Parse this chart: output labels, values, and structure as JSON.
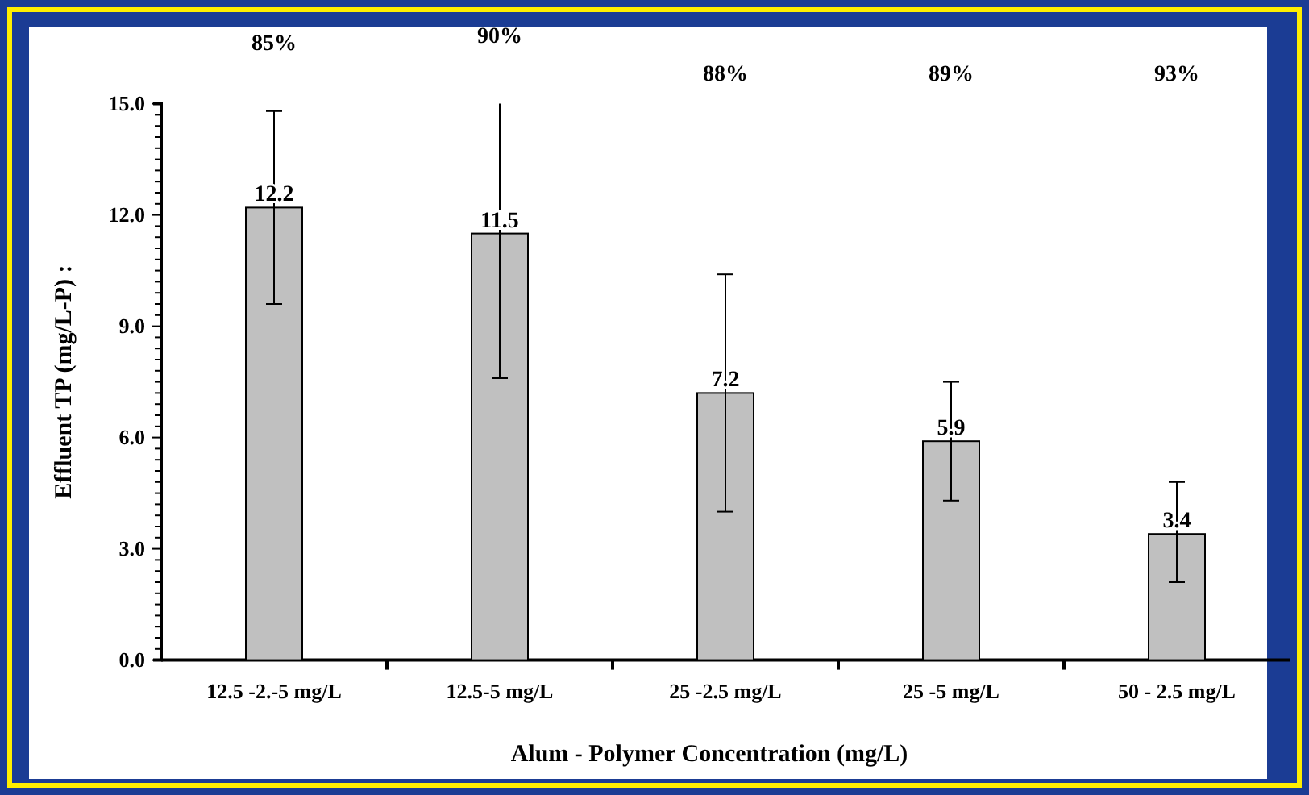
{
  "chart_data": {
    "type": "bar",
    "categories": [
      "12.5 -2.-5 mg/L",
      "12.5-5 mg/L",
      "25 -2.5 mg/L",
      "25 -5 mg/L",
      "50 - 2.5 mg/L"
    ],
    "values": [
      12.2,
      11.5,
      7.2,
      5.9,
      3.4
    ],
    "color": "#c0c0c0",
    "errors": [
      [
        9.6,
        14.8
      ],
      [
        7.6,
        15.0
      ],
      [
        4.0,
        10.4
      ],
      [
        4.3,
        7.5
      ],
      [
        2.1,
        4.8
      ]
    ],
    "data_labels": true,
    "xlabel": "Alum - Polymer Concentration (mg/L)",
    "ylabel": "Effluent TP  (mg/L-P)  :",
    "annotations": [
      "85%",
      "90%",
      "88%",
      "89%",
      "93%"
    ],
    "ylim": [
      0,
      15
    ],
    "yticks": [
      {
        "value": 0,
        "label": "0.0"
      },
      {
        "value": 0.3,
        "label": null
      },
      {
        "value": 0.6,
        "label": null
      },
      {
        "value": 0.9,
        "label": null
      },
      {
        "value": 1.2,
        "label": null
      },
      {
        "value": 1.5,
        "label": null
      },
      {
        "value": 1.8,
        "label": null
      },
      {
        "value": 2.1,
        "label": null
      },
      {
        "value": 2.4,
        "label": null
      },
      {
        "value": 2.7,
        "label": null
      },
      {
        "value": 3,
        "label": "3.0"
      },
      {
        "value": 3.3,
        "label": null
      },
      {
        "value": 3.6,
        "label": null
      },
      {
        "value": 3.9,
        "label": null
      },
      {
        "value": 4.2,
        "label": null
      },
      {
        "value": 4.5,
        "label": null
      },
      {
        "value": 4.8,
        "label": null
      },
      {
        "value": 5.1,
        "label": null
      },
      {
        "value": 5.4,
        "label": null
      },
      {
        "value": 5.7,
        "label": null
      },
      {
        "value": 6,
        "label": "6.0"
      },
      {
        "value": 6.3,
        "label": null
      },
      {
        "value": 6.6,
        "label": null
      },
      {
        "value": 6.9,
        "label": null
      },
      {
        "value": 7.2,
        "label": null
      },
      {
        "value": 7.5,
        "label": null
      },
      {
        "value": 7.8,
        "label": null
      },
      {
        "value": 8.1,
        "label": null
      },
      {
        "value": 8.4,
        "label": null
      },
      {
        "value": 8.7,
        "label": null
      },
      {
        "value": 9,
        "label": "9.0"
      },
      {
        "value": 9.3,
        "label": null
      },
      {
        "value": 9.6,
        "label": null
      },
      {
        "value": 9.9,
        "label": null
      },
      {
        "value": 10.2,
        "label": null
      },
      {
        "value": 10.5,
        "label": null
      },
      {
        "value": 10.8,
        "label": null
      },
      {
        "value": 11.1,
        "label": null
      },
      {
        "value": 11.4,
        "label": null
      },
      {
        "value": 11.7,
        "label": null
      },
      {
        "value": 12,
        "label": "12.0"
      },
      {
        "value": 12.3,
        "label": null
      },
      {
        "value": 12.6,
        "label": null
      },
      {
        "value": 12.9,
        "label": null
      },
      {
        "value": 13.2,
        "label": null
      },
      {
        "value": 13.5,
        "label": null
      },
      {
        "value": 13.8,
        "label": null
      },
      {
        "value": 14.1,
        "label": null
      },
      {
        "value": 14.4,
        "label": null
      },
      {
        "value": 14.7,
        "label": null
      },
      {
        "value": 15,
        "label": "15.0"
      }
    ],
    "grid": false
  }
}
